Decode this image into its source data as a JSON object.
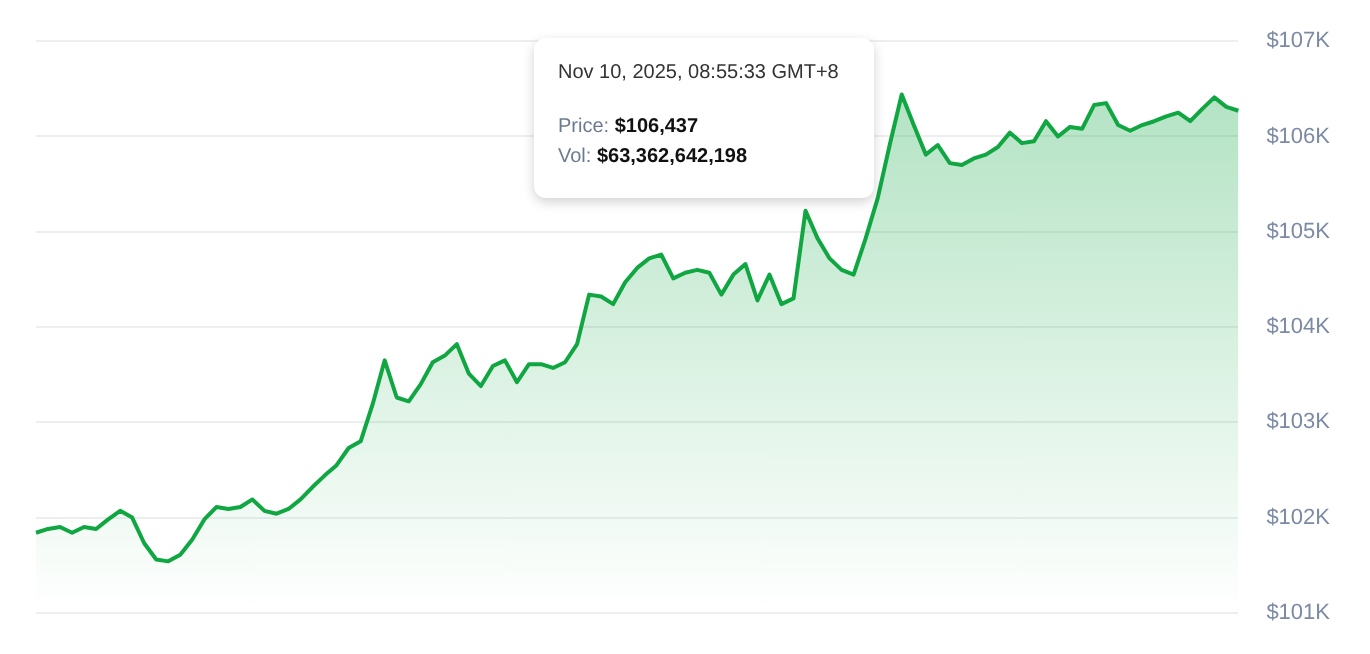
{
  "chart_data": {
    "type": "area",
    "categories": [
      null,
      null,
      null,
      null,
      null,
      null,
      null,
      null,
      null,
      null,
      null,
      null,
      null,
      null,
      null,
      null,
      null,
      null,
      null,
      null,
      null,
      null,
      null,
      null,
      null,
      null,
      null,
      null,
      null,
      null,
      null,
      null,
      null,
      null,
      null,
      null,
      null,
      null,
      null,
      null,
      null,
      null,
      null,
      null,
      null,
      null,
      null,
      null,
      null,
      null,
      null,
      null,
      null,
      null,
      null,
      null,
      null,
      null,
      null,
      null,
      null,
      null,
      null,
      null,
      null,
      null,
      null,
      null,
      null,
      null,
      null,
      null,
      null,
      null,
      null,
      null,
      null,
      null,
      null,
      null,
      null,
      null,
      null,
      null,
      null,
      null,
      null,
      null,
      null,
      null,
      null,
      null,
      null,
      null,
      null,
      null,
      null,
      null,
      null,
      null,
      null
    ],
    "series": [
      {
        "color": "#10a743",
        "values": [
          101840,
          101880,
          101900,
          101840,
          101900,
          101880,
          101980,
          102070,
          102000,
          101730,
          101560,
          101540,
          101610,
          101770,
          101980,
          102110,
          102090,
          102110,
          102190,
          102070,
          102040,
          102090,
          102190,
          102320,
          102440,
          102550,
          102730,
          102800,
          103190,
          103650,
          103260,
          103220,
          103400,
          103630,
          103700,
          103820,
          103510,
          103380,
          103590,
          103650,
          103420,
          103610,
          103610,
          103570,
          103630,
          103820,
          104340,
          104320,
          104240,
          104470,
          104620,
          104720,
          104760,
          104510,
          104570,
          104600,
          104570,
          104340,
          104550,
          104660,
          104280,
          104550,
          104240,
          104300,
          105220,
          104930,
          104720,
          104600,
          104550,
          104930,
          105350,
          105910,
          106440,
          106120,
          105810,
          105910,
          105720,
          105700,
          105770,
          105810,
          105890,
          106040,
          105930,
          105950,
          106160,
          106000,
          106100,
          106080,
          106330,
          106350,
          106120,
          106060,
          106120,
          106160,
          106210,
          106250,
          106160,
          106290,
          106410,
          106310,
          106270
        ]
      }
    ],
    "ylim": [
      101000,
      107000
    ],
    "yticks": [
      {
        "value": 101000,
        "label": "$101K"
      },
      {
        "value": 102000,
        "label": "$102K"
      },
      {
        "value": 103000,
        "label": "$103K"
      },
      {
        "value": 104000,
        "label": "$104K"
      },
      {
        "value": 105000,
        "label": "$105K"
      },
      {
        "value": 106000,
        "label": "$106K"
      },
      {
        "value": 107000,
        "label": "$107K"
      }
    ],
    "tick_labels": "y",
    "grid": "y",
    "legend": false,
    "marker": "none",
    "annotations": [
      "Nov 10, 2025, 08:55:33 GMT+8",
      "Price: $106,437",
      "Vol: $63,362,642,198"
    ]
  }
}
